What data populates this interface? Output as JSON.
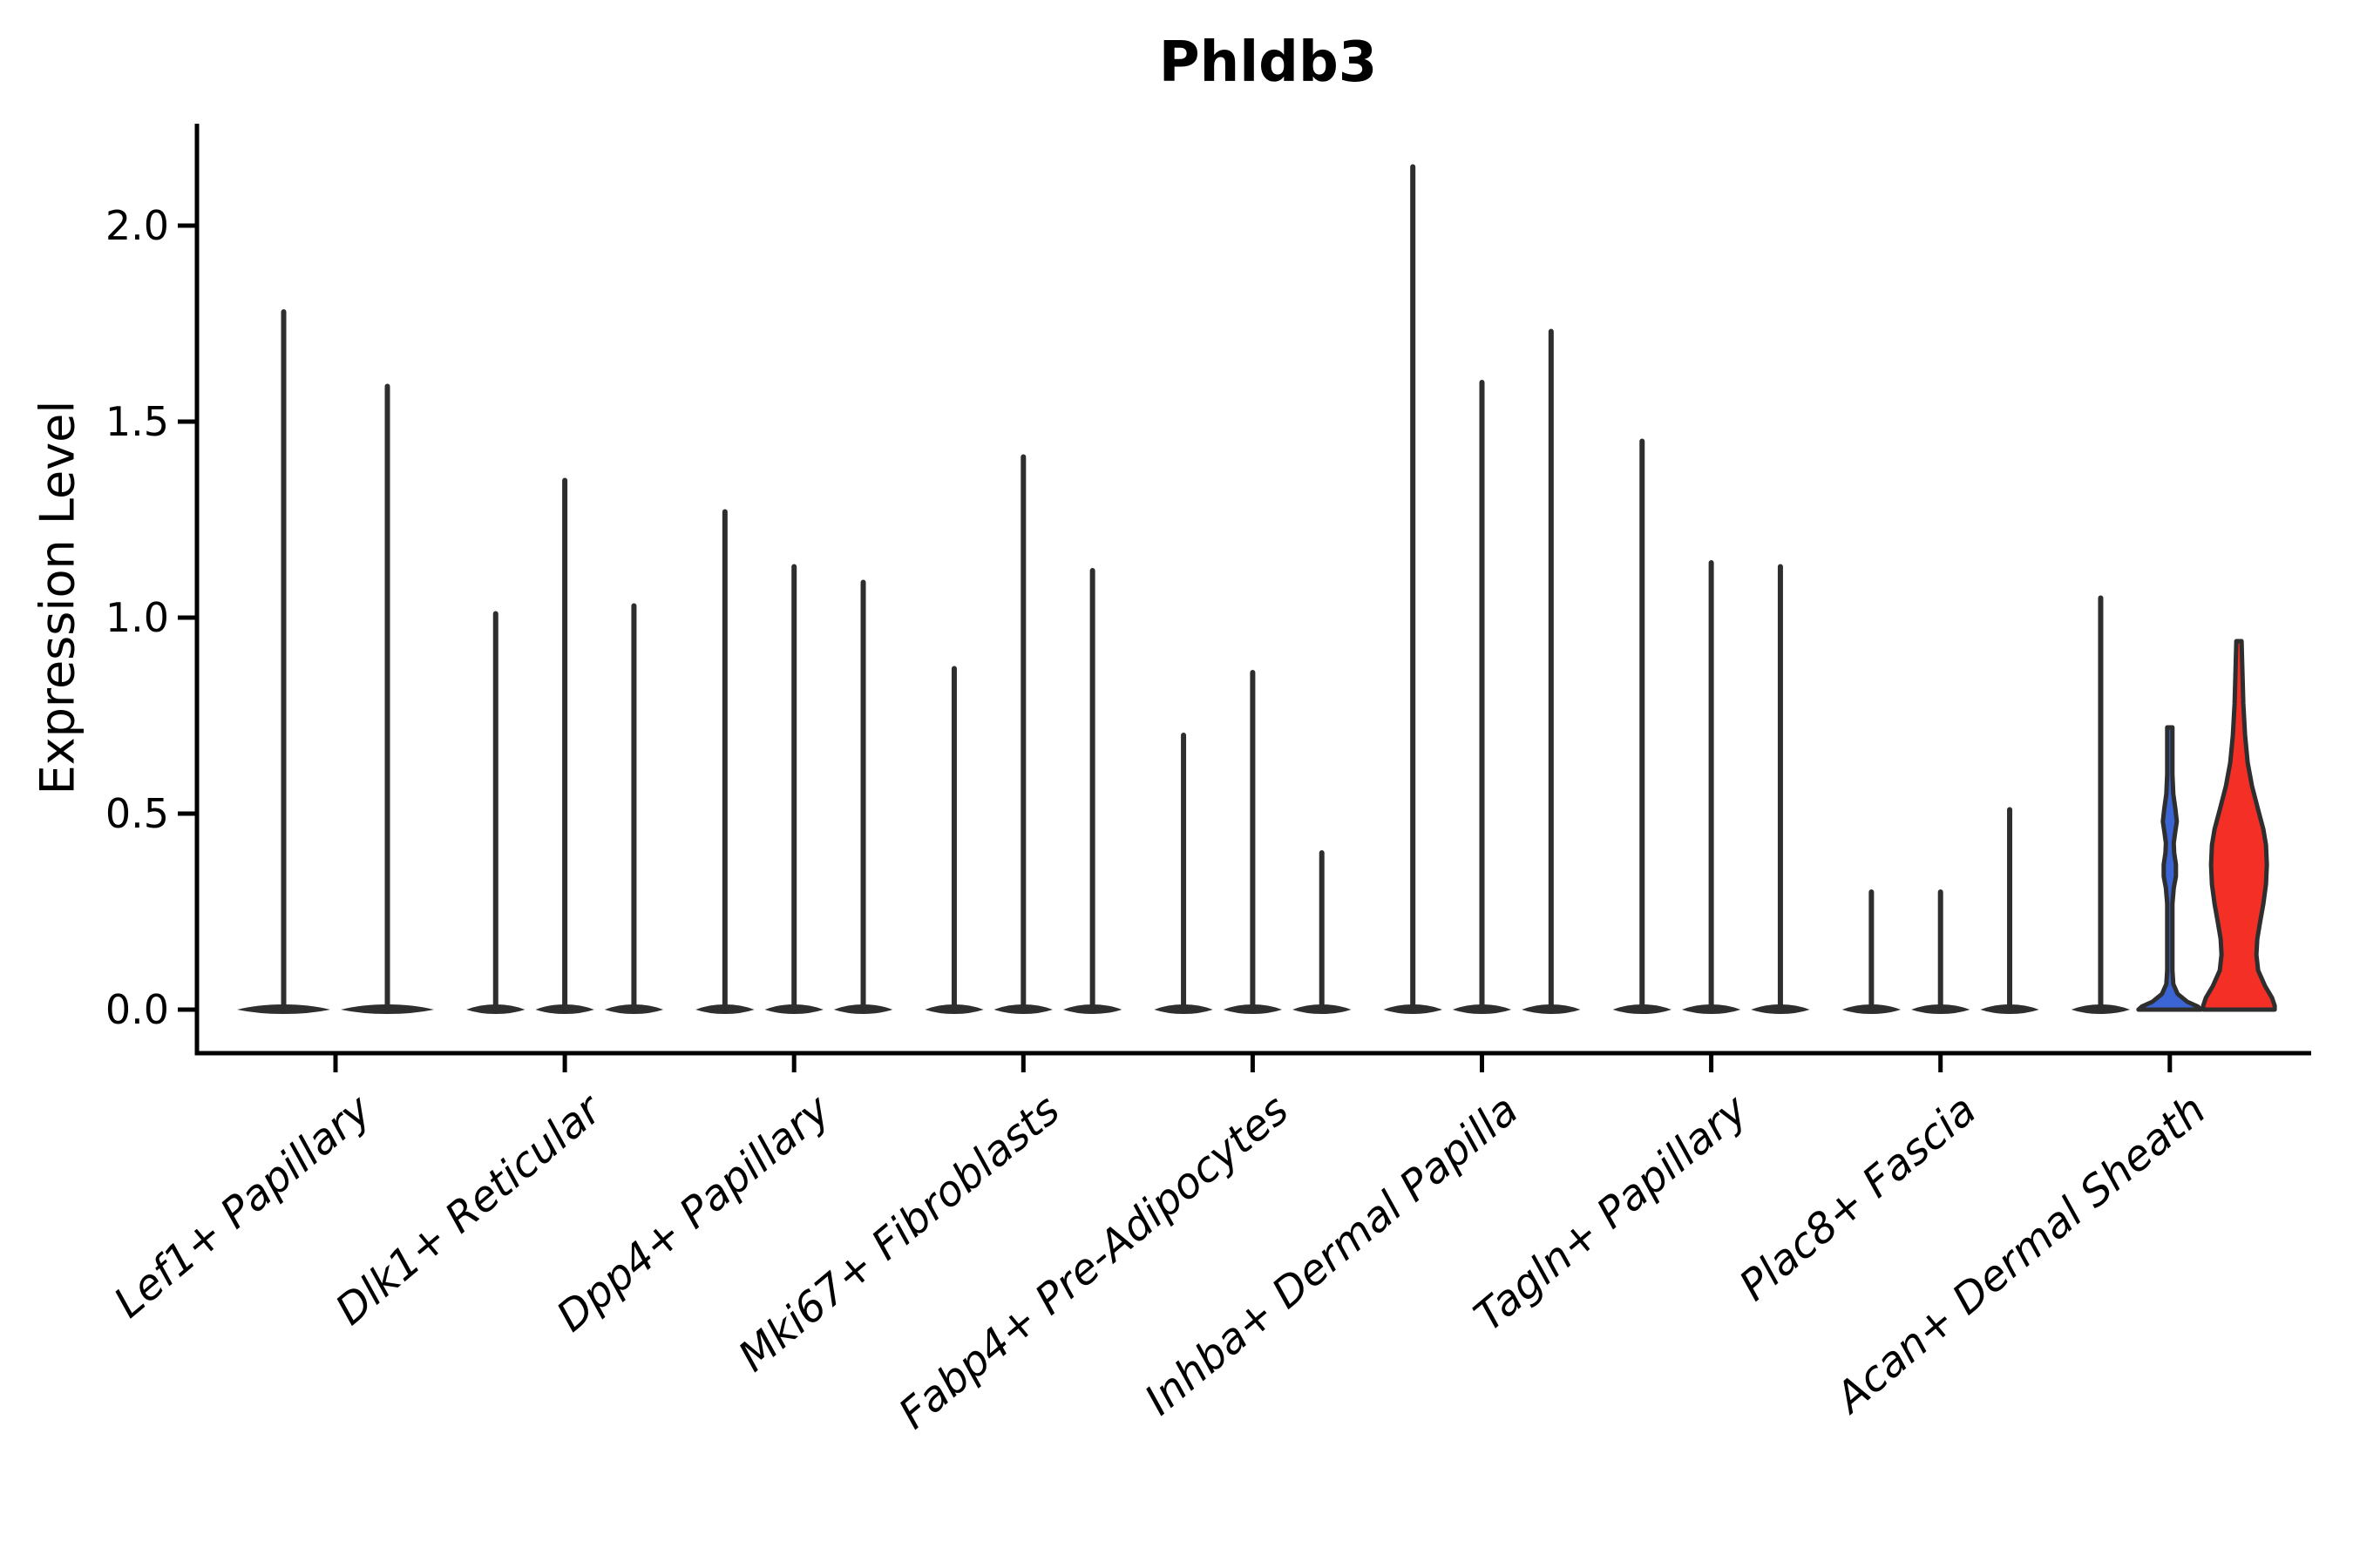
{
  "title": "Phldb3",
  "axes": {
    "ylabel": "Expression Level",
    "xlabel": "",
    "yticks": [
      "0.0",
      "0.5",
      "1.0",
      "1.5",
      "2.0"
    ],
    "ytick_values": [
      0,
      0.5,
      1.0,
      1.5,
      2.0
    ],
    "ylim": [
      -0.11,
      2.26
    ]
  },
  "chart_data": {
    "type": "violin",
    "title": "Phldb3",
    "ylabel": "Expression Level",
    "xlabel": "",
    "yticks": [
      0,
      0.5,
      1.0,
      1.5,
      2.0
    ],
    "ylim": [
      -0.11,
      2.26
    ],
    "grid": false,
    "legend": false,
    "categories": [
      "Lef1+ Papillary",
      "Dlk1+ Reticular",
      "Dpp4+ Papillary",
      "Mki67+ Fibroblasts",
      "Fabp4+ Pre-Adipocytes",
      "Inhba+ Dermal Papilla",
      "Tagln+ Papillary",
      "Plac8+ Fascia",
      "Acan+ Dermal Sheath"
    ],
    "description": "Grouped violin plot of Phldb3 expression. Nearly all violins collapse to a flat base at 0 with a single thin spike (max value per violin). Only the last category shows visibly filled violins: one blue and one red.",
    "groups": [
      {
        "category": "Lef1+ Papillary",
        "violins": [
          {
            "max": 1.78
          },
          {
            "max": 1.59
          }
        ]
      },
      {
        "category": "Dlk1+ Reticular",
        "violins": [
          {
            "max": 1.01
          },
          {
            "max": 1.35
          },
          {
            "max": 1.03
          }
        ]
      },
      {
        "category": "Dpp4+ Papillary",
        "violins": [
          {
            "max": 1.27
          },
          {
            "max": 1.13
          },
          {
            "max": 1.09
          }
        ]
      },
      {
        "category": "Mki67+ Fibroblasts",
        "violins": [
          {
            "max": 0.87
          },
          {
            "max": 1.41
          },
          {
            "max": 1.12
          }
        ]
      },
      {
        "category": "Fabp4+ Pre-Adipocytes",
        "violins": [
          {
            "max": 0.7
          },
          {
            "max": 0.86
          },
          {
            "max": 0.4
          }
        ]
      },
      {
        "category": "Inhba+ Dermal Papilla",
        "violins": [
          {
            "max": 2.15
          },
          {
            "max": 1.6
          },
          {
            "max": 1.73
          }
        ]
      },
      {
        "category": "Tagln+ Papillary",
        "violins": [
          {
            "max": 1.45
          },
          {
            "max": 1.14
          },
          {
            "max": 1.13
          }
        ]
      },
      {
        "category": "Plac8+ Fascia",
        "violins": [
          {
            "max": 0.3
          },
          {
            "max": 0.3
          },
          {
            "max": 0.51
          }
        ]
      },
      {
        "category": "Acan+ Dermal Sheath",
        "violins": [
          {
            "max": 1.05
          },
          {
            "max": 0.72,
            "fill": "blue",
            "profile": [
              [
                0.72,
                3
              ],
              [
                0.6,
                3
              ],
              [
                0.55,
                4
              ],
              [
                0.51,
                6.5
              ],
              [
                0.48,
                8
              ],
              [
                0.45,
                6
              ],
              [
                0.425,
                4.5
              ],
              [
                0.4,
                5
              ],
              [
                0.37,
                7
              ],
              [
                0.34,
                7
              ],
              [
                0.31,
                4.5
              ],
              [
                0.27,
                3
              ],
              [
                0.22,
                3
              ],
              [
                0.16,
                3
              ],
              [
                0.1,
                3
              ],
              [
                0.065,
                4
              ],
              [
                0.04,
                9
              ],
              [
                0.02,
                20
              ],
              [
                0.008,
                32
              ],
              [
                0.0,
                36
              ]
            ]
          },
          {
            "max": 0.94,
            "fill": "red",
            "profile": [
              [
                0.94,
                3
              ],
              [
                0.86,
                4
              ],
              [
                0.78,
                5
              ],
              [
                0.7,
                7
              ],
              [
                0.63,
                10
              ],
              [
                0.57,
                15
              ],
              [
                0.51,
                22
              ],
              [
                0.46,
                28
              ],
              [
                0.42,
                31
              ],
              [
                0.37,
                32
              ],
              [
                0.32,
                31
              ],
              [
                0.27,
                28
              ],
              [
                0.22,
                24
              ],
              [
                0.18,
                21
              ],
              [
                0.14,
                20
              ],
              [
                0.1,
                22
              ],
              [
                0.06,
                30
              ],
              [
                0.03,
                38
              ],
              [
                0.01,
                41
              ],
              [
                0.0,
                41
              ]
            ]
          }
        ]
      }
    ],
    "colors": {
      "blue": "#3B65D5",
      "red": "#F43026",
      "violin_outline": "#2e2e2e",
      "axis": "#000000"
    }
  }
}
